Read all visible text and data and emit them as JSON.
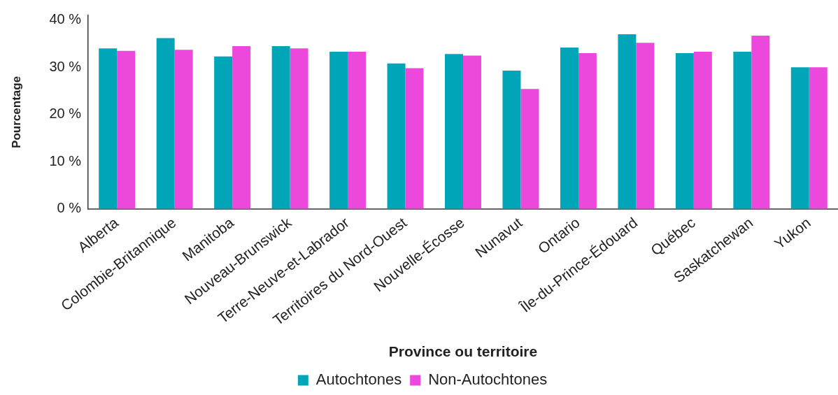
{
  "chart_data": {
    "type": "bar",
    "xlabel": "Province ou territoire",
    "ylabel": "Pourcentage",
    "categories": [
      "Alberta",
      "Colombie-Britannique",
      "Manitoba",
      "Nouveau-Brunswick",
      "Terre-Neuve-et-Labrador",
      "Territoires du Nord-Ouest",
      "Nouvelle-Écosse",
      "Nunavut",
      "Ontario",
      "Île-du-Prince-Édouard",
      "Québec",
      "Saskatchewan",
      "Yukon"
    ],
    "series": [
      {
        "name": "Autochtones",
        "color": "#00a6b8",
        "values": [
          34.0,
          36.2,
          32.3,
          34.5,
          33.3,
          30.8,
          32.8,
          29.3,
          34.2,
          37.0,
          33.0,
          33.3,
          30.0
        ]
      },
      {
        "name": "Non-Autochtones",
        "color": "#ec48dc",
        "values": [
          33.5,
          33.7,
          34.5,
          34.0,
          33.3,
          29.8,
          32.5,
          25.4,
          33.0,
          35.2,
          33.3,
          36.7,
          30.0
        ]
      }
    ],
    "ylim": [
      0,
      41
    ],
    "yticks": [
      {
        "value": 0,
        "label": "0 %"
      },
      {
        "value": 10,
        "label": "10 %"
      },
      {
        "value": 20,
        "label": "20 %"
      },
      {
        "value": 30,
        "label": "30 %"
      },
      {
        "value": 40,
        "label": "40 %"
      }
    ],
    "legend": "bottom"
  }
}
